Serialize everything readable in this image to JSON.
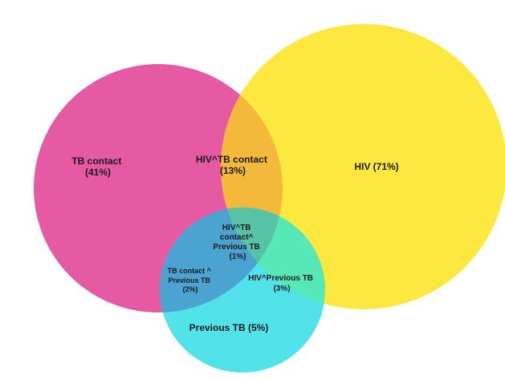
{
  "diagram": {
    "sets": [
      {
        "id": "tb_contact",
        "color": "#e0338f"
      },
      {
        "id": "hiv",
        "color": "#fde72e"
      },
      {
        "id": "previous_tb",
        "color": "#2ee0e8"
      }
    ],
    "regions": {
      "tb_contact": {
        "lines": [
          "TB contact",
          "(41%)"
        ]
      },
      "hiv": {
        "lines": [
          "HIV (71%)"
        ]
      },
      "previous_tb": {
        "lines": [
          "Previous TB (5%)"
        ]
      },
      "hiv_tb_contact": {
        "lines": [
          "HIV^TB contact",
          "(13%)"
        ]
      },
      "hiv_tb_contact_previous_tb": {
        "lines": [
          "HIV^TB",
          "contact^",
          "Previous TB",
          "(1%)"
        ]
      },
      "tb_contact_previous_tb": {
        "lines": [
          "TB contact ^",
          "Previous TB",
          "(2%)"
        ]
      },
      "hiv_previous_tb": {
        "lines": [
          "HIV^Previous TB",
          "(3%)"
        ]
      }
    }
  }
}
